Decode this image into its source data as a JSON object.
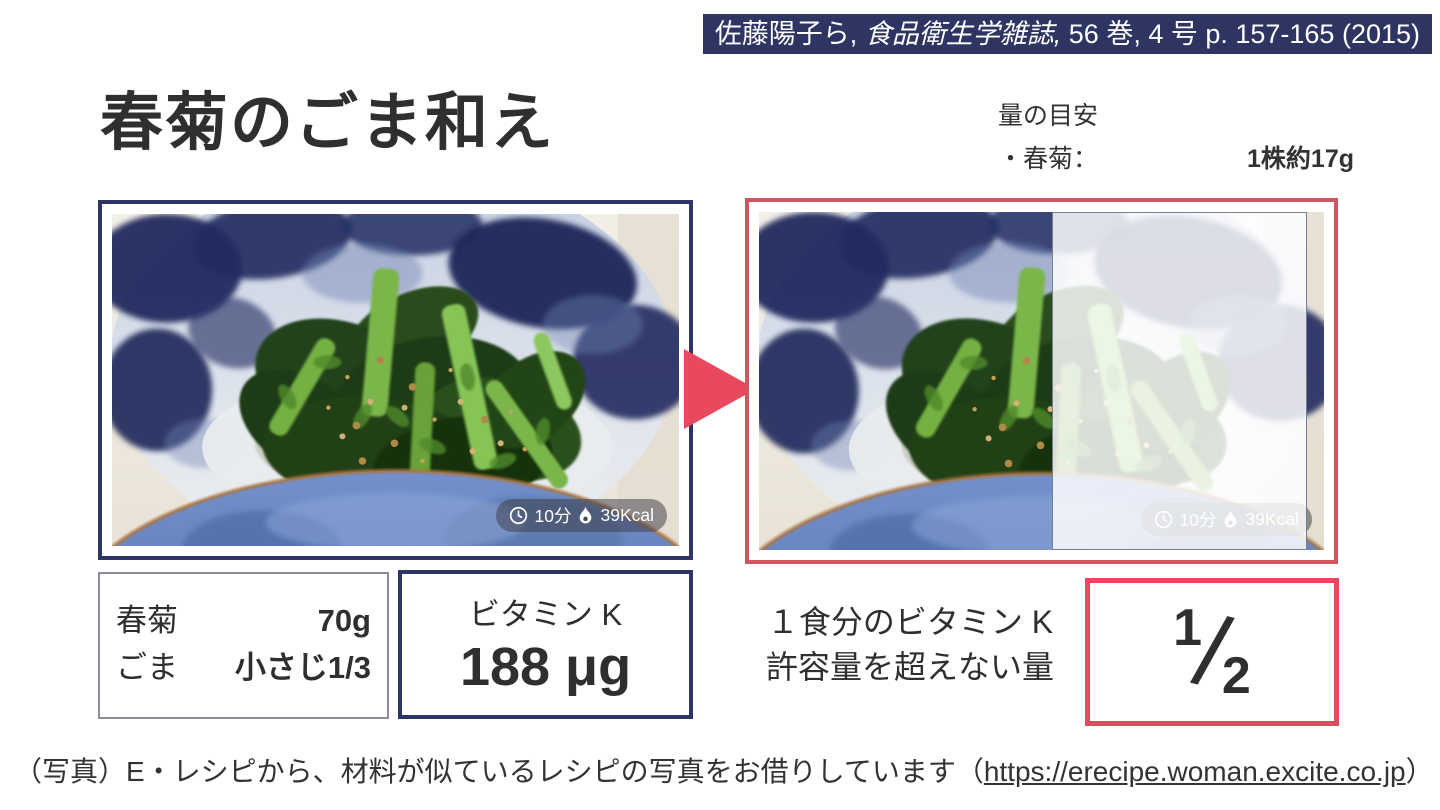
{
  "citation": {
    "pre": "佐藤陽子ら, ",
    "journal_italic": "食品衛生学雑誌,",
    "post": " 56 巻, 4 号 p. 157-165 (2015)"
  },
  "title": "春菊のごま和え",
  "portion_guide": {
    "heading": "量の目安",
    "item_label": "・春菊：",
    "item_value": "1株約17g"
  },
  "photo_badge": {
    "clock_icon": "clock",
    "time": "10分",
    "flame_icon": "flame",
    "calories": "39Kcal"
  },
  "ingredients": {
    "rows": [
      {
        "name": "春菊",
        "amount": "70g"
      },
      {
        "name": "ごま",
        "amount": "小さじ1/3"
      }
    ]
  },
  "vitamin_box": {
    "label": "ビタミン K",
    "value": "188 μg"
  },
  "conclusion": {
    "line1": "１食分のビタミン K",
    "line2": "許容量を超えない量",
    "fraction_numerator": "1",
    "fraction_denominator": "2"
  },
  "footer": {
    "pre": "（写真）E・レシピから、材料が似ているレシピの写真をお借りしています（",
    "url": "https://erecipe.woman.excite.co.jp",
    "post": "）"
  },
  "colors": {
    "navy": "#2e3563",
    "red_frame": "#cf5560",
    "red_accent": "#e9495e",
    "ink": "#2f2f2f"
  }
}
